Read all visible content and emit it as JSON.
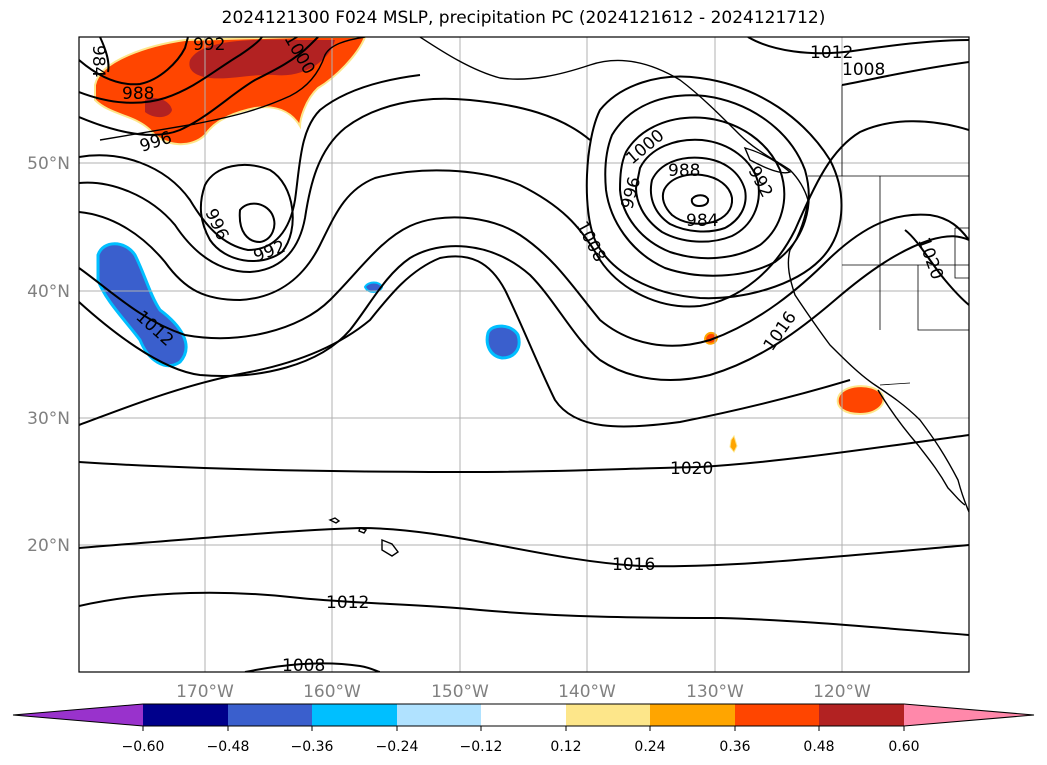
{
  "title": "2024121300 F024 MSLP, precipitation PC (2024121612 - 2024121712)",
  "map": {
    "lon_labels": [
      "170°W",
      "160°W",
      "150°W",
      "140°W",
      "130°W",
      "120°W"
    ],
    "lat_labels": [
      "50°N",
      "40°N",
      "30°N",
      "20°N"
    ],
    "contour_labels": [
      {
        "id": "l1",
        "text": "984"
      },
      {
        "id": "l2",
        "text": "992"
      },
      {
        "id": "l3",
        "text": "1000"
      },
      {
        "id": "l4",
        "text": "988"
      },
      {
        "id": "l5",
        "text": "996"
      },
      {
        "id": "l6",
        "text": "996"
      },
      {
        "id": "l7",
        "text": "992"
      },
      {
        "id": "l8",
        "text": "1012"
      },
      {
        "id": "l9",
        "text": "1008"
      },
      {
        "id": "l10",
        "text": "1012"
      },
      {
        "id": "l11",
        "text": "1000"
      },
      {
        "id": "l12",
        "text": "996"
      },
      {
        "id": "l13",
        "text": "988"
      },
      {
        "id": "l14",
        "text": "992"
      },
      {
        "id": "l15",
        "text": "984"
      },
      {
        "id": "l16",
        "text": "1008"
      },
      {
        "id": "l17",
        "text": "1016"
      },
      {
        "id": "l18",
        "text": "1020"
      },
      {
        "id": "l19",
        "text": "1020"
      },
      {
        "id": "l20",
        "text": "1016"
      },
      {
        "id": "l21",
        "text": "1012"
      },
      {
        "id": "l22",
        "text": "1008"
      }
    ]
  },
  "colorbar": {
    "colors": [
      "#9932cc",
      "#00008b",
      "#3a5fcd",
      "#00bfff",
      "#b0e2ff",
      "#ffffff",
      "#fde68a",
      "#ffa500",
      "#ff4500",
      "#b22222",
      "#ff88aa"
    ],
    "tick_labels": [
      "−0.60",
      "−0.48",
      "−0.36",
      "−0.24",
      "−0.12",
      "0.12",
      "0.24",
      "0.36",
      "0.48",
      "0.60"
    ]
  }
}
